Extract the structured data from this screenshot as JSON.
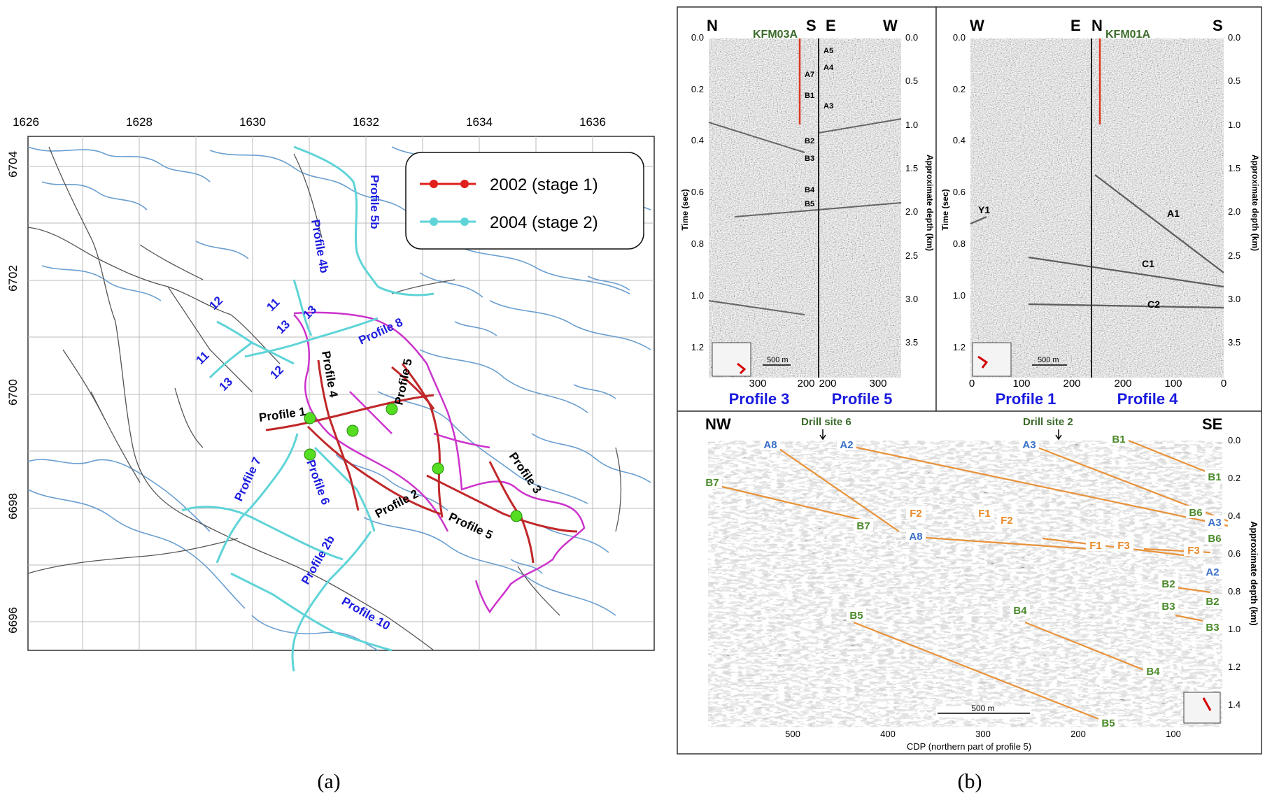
{
  "map": {
    "x_ticks": [
      "1626",
      "1628",
      "1630",
      "1632",
      "1634",
      "1636"
    ],
    "y_ticks": [
      "6704",
      "6702",
      "6700",
      "6698",
      "6696"
    ],
    "legend": [
      {
        "label": "2002 (stage 1)",
        "color": "#e0201c"
      },
      {
        "label": "2004 (stage 2)",
        "color": "#5fd4d8"
      }
    ],
    "blue_labels": [
      "Profile 5b",
      "Profile 4b",
      "Profile 8",
      "Profile 7",
      "Profile 6",
      "Profile 2b",
      "Profile 10",
      "12",
      "11",
      "13",
      "11",
      "13",
      "12",
      "13"
    ],
    "black_labels": [
      "Profile 1",
      "Profile 4",
      "Profile 5",
      "Profile 2",
      "Profile 3",
      "Profile 5"
    ],
    "colors": {
      "water": "#6a9fd0",
      "road": "#555555",
      "boundary": "#cc33cc",
      "grid": "#bbbbbb",
      "site": "#55dd22"
    }
  },
  "seis_a": {
    "left_dirs": [
      "N",
      "S"
    ],
    "right_dirs": [
      "E",
      "W"
    ],
    "borehole": "KFM03A",
    "time_label": "Time (sec)",
    "depth_label": "Approximate depth (km)",
    "time_ticks": [
      "0.0",
      "0.2",
      "0.4",
      "0.6",
      "0.8",
      "1.0",
      "1.2"
    ],
    "depth_ticks": [
      "0.0",
      "0.5",
      "1.0",
      "1.5",
      "2.0",
      "2.5",
      "3.0",
      "3.5"
    ],
    "reflectors": [
      "A5",
      "A4",
      "A7",
      "B1",
      "A3",
      "B2",
      "B3",
      "B4",
      "B5"
    ],
    "scale": "500 m",
    "x_ticks_left": [
      "300",
      "200"
    ],
    "x_ticks_right": [
      "200",
      "300"
    ],
    "profile_left": "Profile 3",
    "profile_right": "Profile 5"
  },
  "seis_b": {
    "left_dirs": [
      "W",
      "E"
    ],
    "right_dirs": [
      "N",
      "S"
    ],
    "borehole": "KFM01A",
    "time_label": "Time (sec)",
    "depth_label": "Approximate depth (km)",
    "time_ticks": [
      "0.0",
      "0.2",
      "0.4",
      "0.6",
      "0.8",
      "1.0",
      "1.2"
    ],
    "depth_ticks": [
      "0.0",
      "0.5",
      "1.0",
      "1.5",
      "2.0",
      "2.5",
      "3.0",
      "3.5"
    ],
    "reflectors": [
      "Y1",
      "A1",
      "C1",
      "C2"
    ],
    "scale": "500 m",
    "x_ticks_left": [
      "0",
      "100",
      "200"
    ],
    "x_ticks_right": [
      "200",
      "100",
      "0"
    ],
    "profile_left": "Profile 1",
    "profile_right": "Profile 4"
  },
  "seis_c": {
    "left_dir": "NW",
    "right_dir": "SE",
    "drill_site_1": "Drill site 6",
    "drill_site_2": "Drill site 2",
    "depth_label": "Approximate depth (km)",
    "depth_ticks": [
      "0.0",
      "0.2",
      "0.4",
      "0.6",
      "0.8",
      "1.0",
      "1.2",
      "1.4"
    ],
    "x_ticks": [
      "500",
      "400",
      "300",
      "200",
      "100"
    ],
    "x_axis_label": "CDP (northern part of profile 5)",
    "scale": "500 m",
    "labels": [
      "A8",
      "A2",
      "A3",
      "B1",
      "B7",
      "B1",
      "B6",
      "A3",
      "F2",
      "F1",
      "F2",
      "B7",
      "A8",
      "F1",
      "F3",
      "B6",
      "F3",
      "A2",
      "B2",
      "B2",
      "B3",
      "B3",
      "B4",
      "B5",
      "B4",
      "B5"
    ]
  },
  "captions": {
    "a": "(a)",
    "b": "(b)"
  }
}
